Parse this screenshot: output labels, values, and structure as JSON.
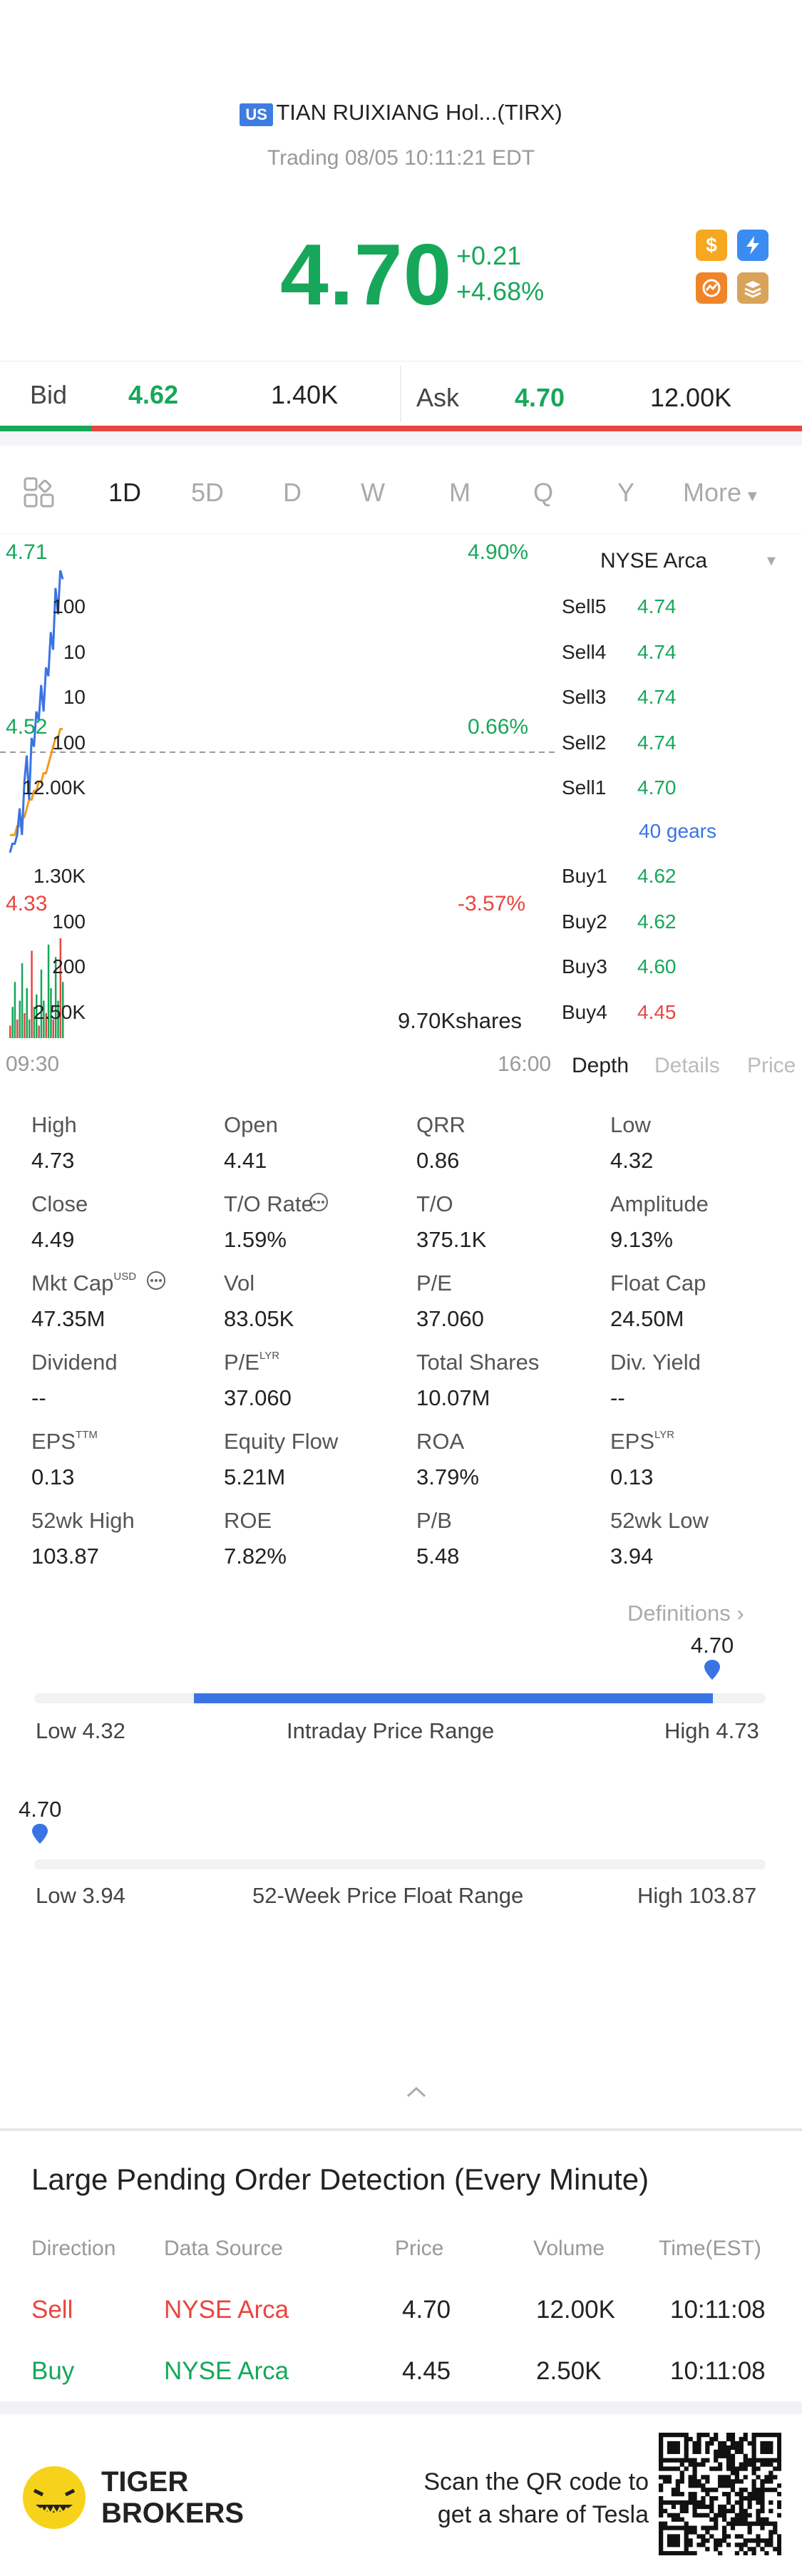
{
  "header": {
    "market_badge": "US",
    "title": "TIAN RUIXIANG Hol...(TIRX)",
    "status": "Trading 08/05 10:11:21 EDT",
    "price": "4.70",
    "change": "+0.21",
    "change_pct": "+4.68%",
    "icons": [
      "dollar-icon",
      "lightning-icon",
      "chart-icon",
      "stack-icon"
    ]
  },
  "quote": {
    "bid_label": "Bid",
    "bid_price": "4.62",
    "bid_size": "1.40K",
    "ask_label": "Ask",
    "ask_price": "4.70",
    "ask_size": "12.00K",
    "bid_ratio": 0.115
  },
  "tabs": [
    "1D",
    "5D",
    "D",
    "W",
    "M",
    "Q",
    "Y",
    "More"
  ],
  "chart": {
    "high_price": "4.71",
    "high_pct": "4.90%",
    "prev_price": "4.52",
    "prev_pct": "0.66%",
    "low_price": "4.33",
    "low_pct": "-3.57%",
    "volume_label": "9.70Kshares",
    "time_start": "09:30",
    "time_end": "16:00"
  },
  "chart_data": {
    "type": "line",
    "series": [
      {
        "values": [
          4.39,
          4.4,
          4.4,
          4.41,
          4.44,
          4.41,
          4.47,
          4.5,
          4.45,
          4.52,
          4.51,
          4.55,
          4.54,
          4.58,
          4.55,
          4.6,
          4.59,
          4.64,
          4.62,
          4.69,
          4.66,
          4.71,
          4.7
        ]
      },
      {
        "values": [
          4.41,
          4.41,
          4.41,
          4.42,
          4.42,
          4.43,
          4.43,
          4.44,
          4.45,
          4.45,
          4.46,
          4.46,
          4.47,
          4.47,
          4.48,
          4.48,
          4.49,
          4.5,
          4.51,
          4.52,
          4.52,
          4.53,
          4.53
        ]
      }
    ],
    "ylim": [
      4.33,
      4.71
    ],
    "volumes": [
      2,
      5,
      9,
      3,
      6,
      12,
      4,
      8,
      3,
      14,
      5,
      7,
      2,
      11,
      6,
      4,
      15,
      8,
      3,
      13,
      6,
      16,
      9
    ]
  },
  "orderbook": {
    "exchange": "NYSE Arca",
    "sell": [
      {
        "label": "Sell5",
        "price": "4.74",
        "vol": "100"
      },
      {
        "label": "Sell4",
        "price": "4.74",
        "vol": "10"
      },
      {
        "label": "Sell3",
        "price": "4.74",
        "vol": "10"
      },
      {
        "label": "Sell2",
        "price": "4.74",
        "vol": "100"
      },
      {
        "label": "Sell1",
        "price": "4.70",
        "vol": "12.00K"
      }
    ],
    "gears": "40 gears",
    "buy": [
      {
        "label": "Buy1",
        "price": "4.62",
        "vol": "1.30K"
      },
      {
        "label": "Buy2",
        "price": "4.62",
        "vol": "100"
      },
      {
        "label": "Buy3",
        "price": "4.60",
        "vol": "200"
      },
      {
        "label": "Buy4",
        "price": "4.45",
        "vol": "2.50K"
      }
    ],
    "tabs": [
      "Depth",
      "Details",
      "Price"
    ]
  },
  "stats": [
    [
      {
        "k": "High",
        "v": "4.73"
      },
      {
        "k": "Open",
        "v": "4.41"
      },
      {
        "k": "QRR",
        "v": "0.86"
      },
      {
        "k": "Low",
        "v": "4.32"
      }
    ],
    [
      {
        "k": "Close",
        "v": "4.49"
      },
      {
        "k": "T/O Rate",
        "v": "1.59%"
      },
      {
        "k": "T/O",
        "v": "375.1K"
      },
      {
        "k": "Amplitude",
        "v": "9.13%"
      }
    ],
    [
      {
        "k": "Mkt Cap",
        "v": "47.35M",
        "sup": "USD"
      },
      {
        "k": "Vol",
        "v": "83.05K"
      },
      {
        "k": "P/E",
        "v": "37.060"
      },
      {
        "k": "Float Cap",
        "v": "24.50M"
      }
    ],
    [
      {
        "k": "Dividend",
        "v": "--"
      },
      {
        "k": "P/E",
        "v": "37.060",
        "sup": "LYR"
      },
      {
        "k": "Total Shares",
        "v": "10.07M"
      },
      {
        "k": "Div. Yield",
        "v": "--"
      }
    ],
    [
      {
        "k": "EPS",
        "v": "0.13",
        "sup": "TTM"
      },
      {
        "k": "Equity Flow",
        "v": "5.21M"
      },
      {
        "k": "ROA",
        "v": "3.79%"
      },
      {
        "k": "EPS",
        "v": "0.13",
        "sup": "LYR"
      }
    ],
    [
      {
        "k": "52wk High",
        "v": "103.87"
      },
      {
        "k": "ROE",
        "v": "7.82%"
      },
      {
        "k": "P/B",
        "v": "5.48"
      },
      {
        "k": "52wk Low",
        "v": "3.94"
      }
    ]
  ],
  "definitions": "Definitions",
  "intraday": {
    "marker": "4.70",
    "low": "Low 4.32",
    "label": "Intraday Price Range",
    "high": "High 4.73",
    "position": 0.927
  },
  "week52": {
    "marker": "4.70",
    "low": "Low 3.94",
    "label": "52-Week Price Float Range",
    "high": "High 103.87",
    "position": 0.008
  },
  "large_orders": {
    "title": "Large Pending Order Detection (Every Minute)",
    "headers": [
      "Direction",
      "Data Source",
      "Price",
      "Volume",
      "Time(EST)"
    ],
    "rows": [
      {
        "dir": "Sell",
        "src": "NYSE Arca",
        "price": "4.70",
        "vol": "12.00K",
        "time": "10:11:08"
      },
      {
        "dir": "Buy",
        "src": "NYSE Arca",
        "price": "4.45",
        "vol": "2.50K",
        "time": "10:11:08"
      }
    ]
  },
  "footer": {
    "brand_line1": "TIGER",
    "brand_line2": "BROKERS",
    "cta_line1": "Scan the QR code to",
    "cta_line2": "get a share of Tesla"
  },
  "colors": {
    "green": "#17a75a",
    "red": "#e8463f",
    "blue": "#3a74e4",
    "orange": "#f39a1e"
  }
}
